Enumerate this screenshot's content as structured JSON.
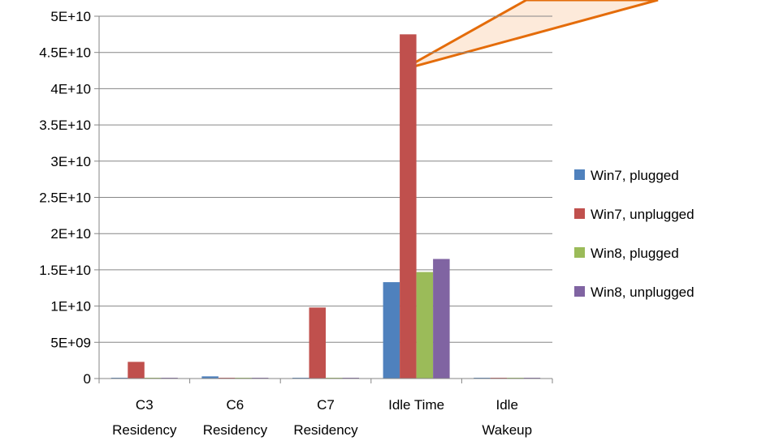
{
  "chart_data": {
    "type": "bar",
    "title": "",
    "xlabel": "",
    "ylabel": "",
    "ylim": [
      0,
      50000000000
    ],
    "yticks": [
      {
        "value": 0,
        "label": "0"
      },
      {
        "value": 5000000000,
        "label": "5E+09"
      },
      {
        "value": 10000000000,
        "label": "1E+10"
      },
      {
        "value": 15000000000,
        "label": "1.5E+10"
      },
      {
        "value": 20000000000,
        "label": "2E+10"
      },
      {
        "value": 25000000000,
        "label": "2.5E+10"
      },
      {
        "value": 30000000000,
        "label": "3E+10"
      },
      {
        "value": 35000000000,
        "label": "3.5E+10"
      },
      {
        "value": 40000000000,
        "label": "4E+10"
      },
      {
        "value": 45000000000,
        "label": "4.5E+10"
      },
      {
        "value": 50000000000,
        "label": "5E+10"
      }
    ],
    "categories": [
      [
        "C3",
        "Residency"
      ],
      [
        "C6",
        "Residency"
      ],
      [
        "C7",
        "Residency"
      ],
      [
        "Idle Time"
      ],
      [
        "Idle",
        "Wakeup"
      ]
    ],
    "series": [
      {
        "name": "Win7, plugged",
        "color": "#4F81BD",
        "values": [
          100000000,
          300000000,
          50000000,
          13300000000,
          50000000
        ]
      },
      {
        "name": "Win7, unplugged",
        "color": "#C0504D",
        "values": [
          2300000000,
          50000000,
          9800000000,
          47500000000,
          50000000
        ]
      },
      {
        "name": "Win8, plugged",
        "color": "#9BBB59",
        "values": [
          50000000,
          50000000,
          50000000,
          14700000000,
          50000000
        ]
      },
      {
        "name": "Win8, unplugged",
        "color": "#8064A2",
        "values": [
          50000000,
          50000000,
          50000000,
          16500000000,
          50000000
        ]
      }
    ],
    "grid": true,
    "legend": "right",
    "callout": {
      "color": "#E46C0A",
      "fill": "#FDEADA"
    }
  }
}
